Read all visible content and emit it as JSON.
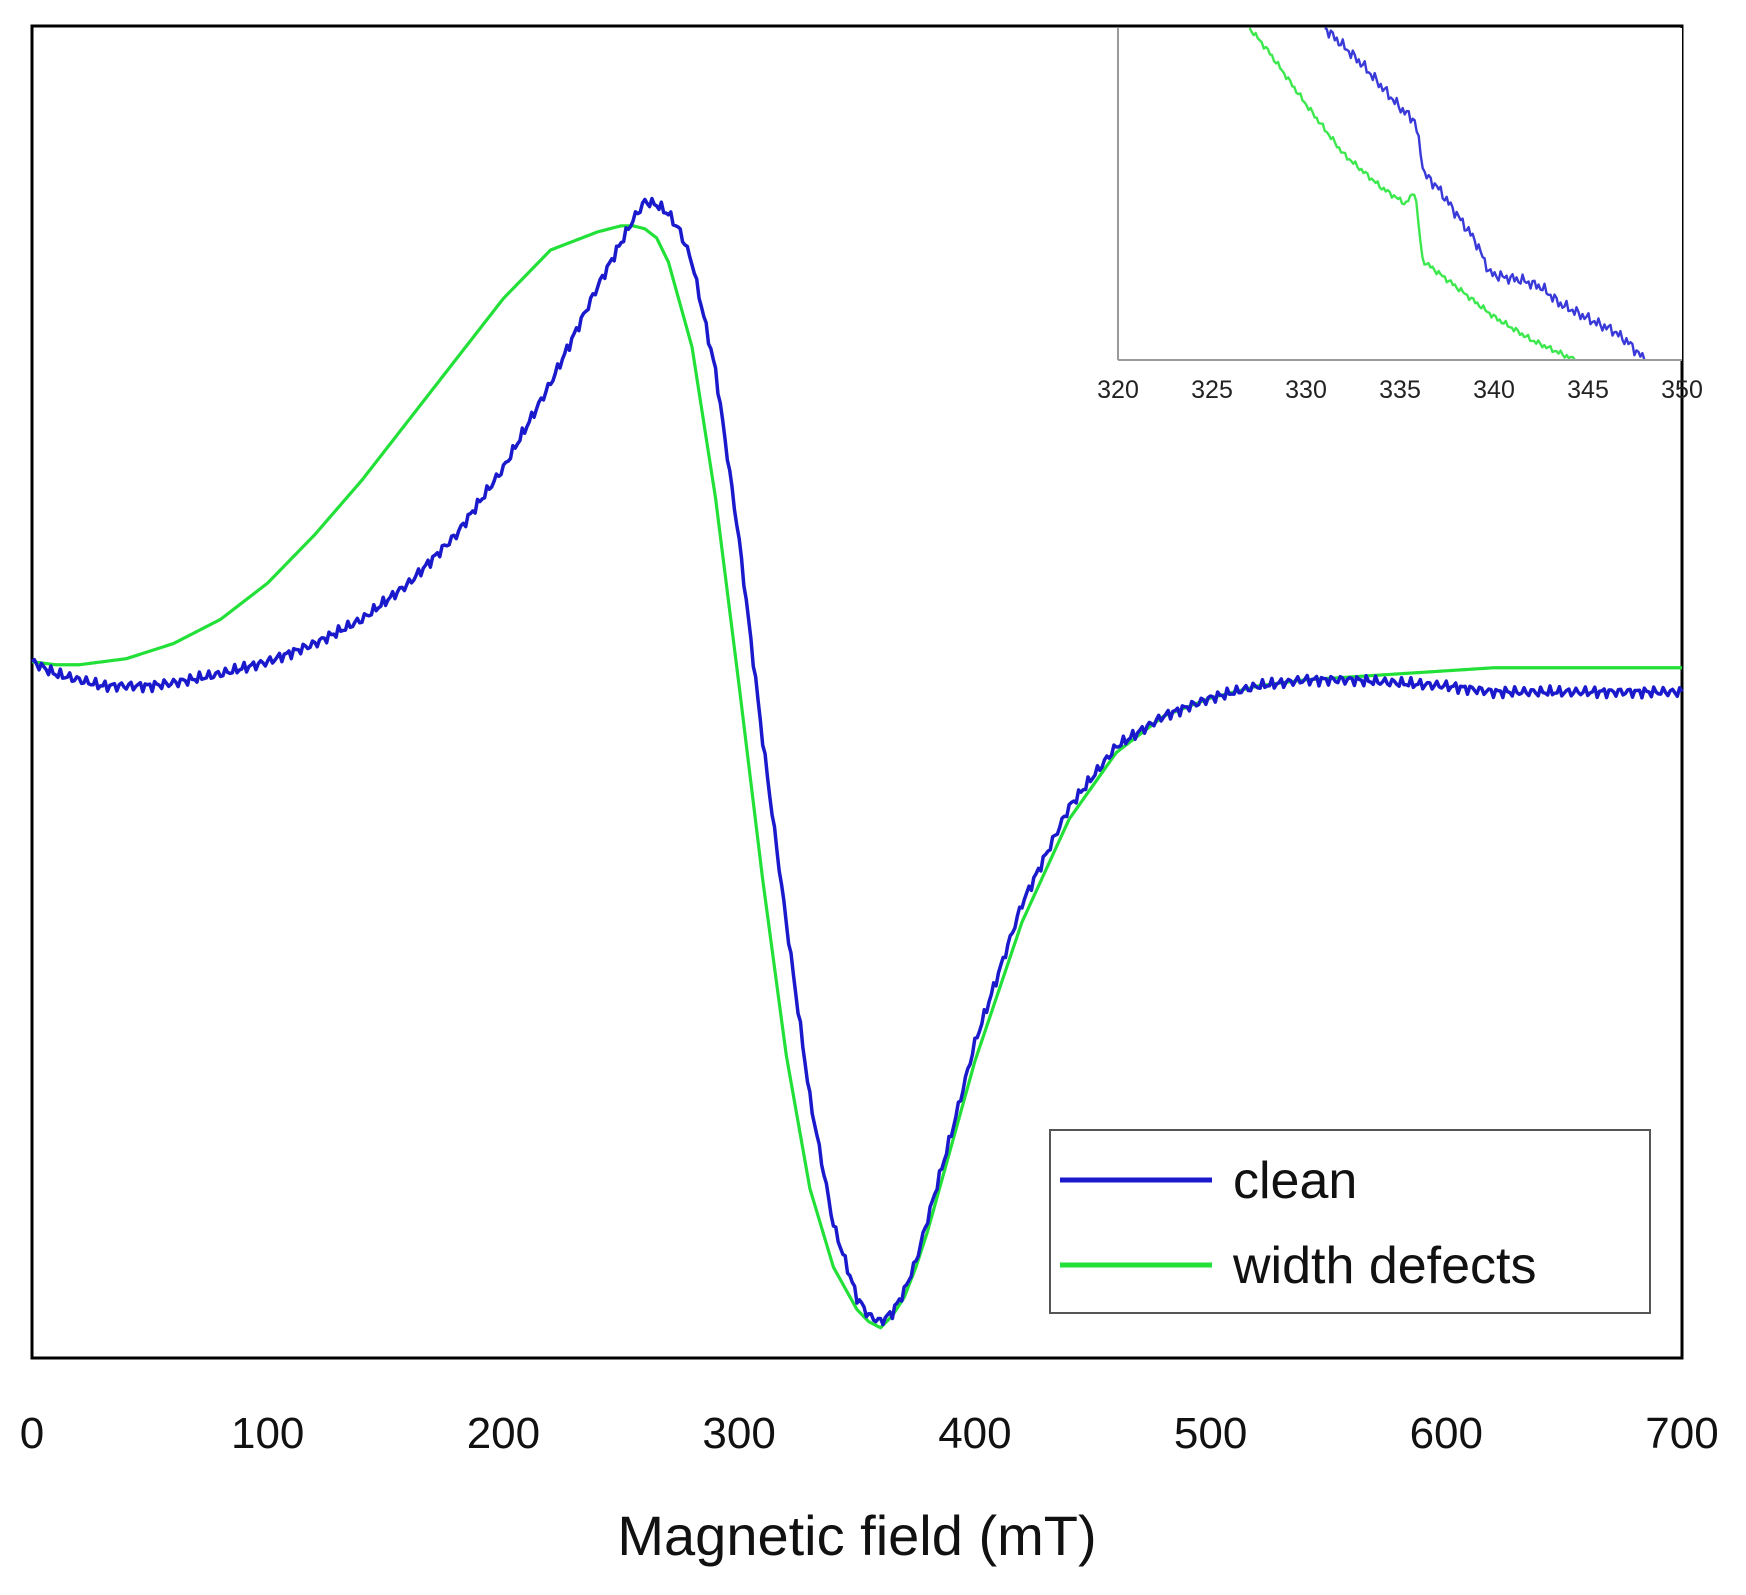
{
  "chart_data": [
    {
      "type": "line",
      "title": "",
      "xlabel": "Magnetic field (mT)",
      "ylabel": "",
      "xlim": [
        0,
        700
      ],
      "ylim": [
        -1.15,
        1.05
      ],
      "xticks": [
        0,
        100,
        200,
        300,
        400,
        500,
        600,
        700
      ],
      "yticks": [],
      "grid": false,
      "legend_position": "bottom-right",
      "series": [
        {
          "name": "clean",
          "color": "#1a1acc",
          "x": [
            0,
            10,
            20,
            30,
            40,
            50,
            60,
            80,
            100,
            120,
            140,
            160,
            180,
            200,
            220,
            240,
            255,
            260,
            265,
            270,
            275,
            280,
            290,
            300,
            310,
            320,
            330,
            340,
            350,
            355,
            360,
            365,
            370,
            375,
            380,
            390,
            400,
            420,
            440,
            460,
            480,
            500,
            520,
            540,
            560,
            580,
            600,
            620,
            640,
            660,
            680,
            700
          ],
          "y": [
            0.0,
            -0.02,
            -0.03,
            -0.04,
            -0.04,
            -0.04,
            -0.035,
            -0.02,
            0.0,
            0.03,
            0.07,
            0.13,
            0.21,
            0.32,
            0.46,
            0.62,
            0.73,
            0.76,
            0.755,
            0.74,
            0.71,
            0.66,
            0.48,
            0.2,
            -0.13,
            -0.43,
            -0.72,
            -0.93,
            -1.05,
            -1.08,
            -1.09,
            -1.075,
            -1.04,
            -0.99,
            -0.92,
            -0.78,
            -0.63,
            -0.4,
            -0.24,
            -0.14,
            -0.09,
            -0.06,
            -0.04,
            -0.03,
            -0.03,
            -0.035,
            -0.04,
            -0.05,
            -0.05,
            -0.05,
            -0.05,
            -0.05
          ]
        },
        {
          "name": "width defects",
          "color": "#22e038",
          "x": [
            0,
            10,
            20,
            40,
            60,
            80,
            100,
            120,
            140,
            160,
            180,
            200,
            220,
            240,
            250,
            255,
            260,
            265,
            270,
            280,
            290,
            300,
            310,
            320,
            330,
            340,
            350,
            355,
            360,
            365,
            370,
            375,
            380,
            390,
            400,
            420,
            440,
            460,
            480,
            500,
            520,
            540,
            560,
            580,
            600,
            620,
            640,
            660,
            680,
            700
          ],
          "y": [
            0.0,
            -0.005,
            -0.005,
            0.005,
            0.03,
            0.07,
            0.13,
            0.21,
            0.3,
            0.4,
            0.5,
            0.6,
            0.68,
            0.71,
            0.72,
            0.72,
            0.715,
            0.7,
            0.66,
            0.52,
            0.27,
            -0.04,
            -0.36,
            -0.65,
            -0.87,
            -1.0,
            -1.07,
            -1.09,
            -1.1,
            -1.08,
            -1.05,
            -1.0,
            -0.94,
            -0.8,
            -0.66,
            -0.43,
            -0.26,
            -0.15,
            -0.09,
            -0.06,
            -0.04,
            -0.03,
            -0.025,
            -0.02,
            -0.015,
            -0.01,
            -0.01,
            -0.01,
            -0.01,
            -0.01
          ]
        }
      ]
    },
    {
      "type": "line",
      "title": "",
      "xlabel": "",
      "ylabel": "",
      "xlim": [
        320,
        350
      ],
      "ylim": [
        0,
        1
      ],
      "xticks": [
        320,
        325,
        330,
        335,
        340,
        345,
        350
      ],
      "yticks": [],
      "grid": false,
      "legend_position": "none",
      "series": [
        {
          "name": "clean",
          "color": "#3a3ad9",
          "x": [
            331,
            333,
            335,
            335.8,
            336.3,
            337,
            338,
            339,
            339.8,
            340.5,
            341.5,
            342.5,
            343.5,
            344.5,
            345.5,
            346.3,
            347.2,
            348
          ],
          "y": [
            1.0,
            0.89,
            0.76,
            0.72,
            0.56,
            0.52,
            0.44,
            0.36,
            0.26,
            0.25,
            0.24,
            0.22,
            0.17,
            0.14,
            0.11,
            0.09,
            0.05,
            0.0
          ],
          "jitter": 0.012
        },
        {
          "name": "width defects",
          "color": "#3ce84e",
          "x": [
            327,
            328,
            330,
            332,
            334,
            335.3,
            335.8,
            336,
            336.2,
            338,
            340,
            342,
            344.3
          ],
          "y": [
            1.0,
            0.93,
            0.77,
            0.62,
            0.52,
            0.47,
            0.51,
            0.4,
            0.3,
            0.22,
            0.13,
            0.06,
            0.0
          ],
          "jitter": 0.006
        }
      ]
    }
  ]
}
